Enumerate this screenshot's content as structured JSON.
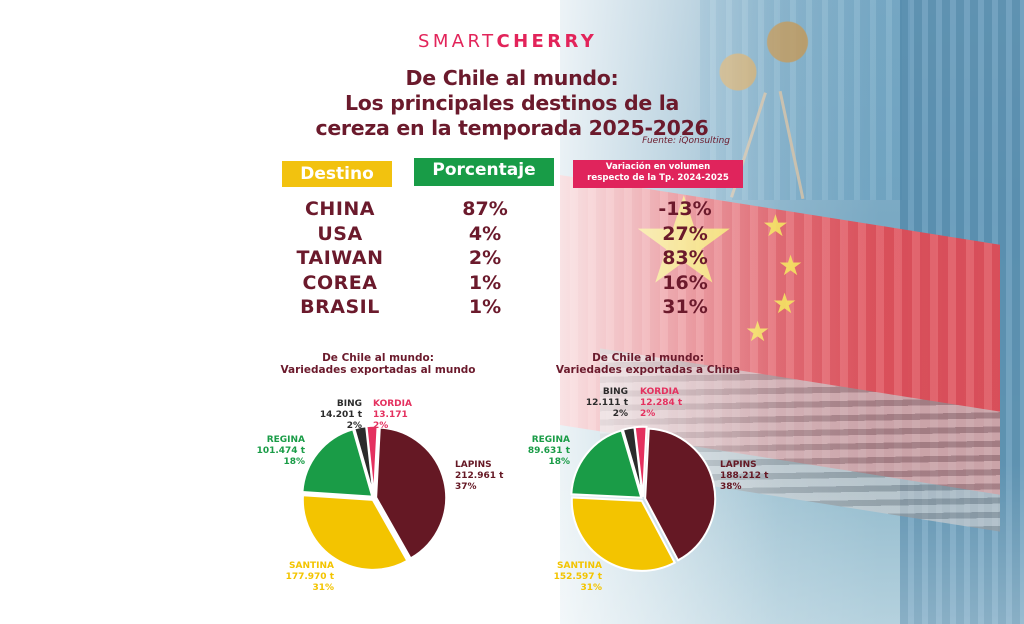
{
  "brand": {
    "light": "SMART",
    "bold": "CHERRY",
    "color": "#e2245a"
  },
  "title": {
    "line1": "De Chile al mundo:",
    "line2": "Los principales destinos de la",
    "line3": "cereza en la temporada 2025-2026"
  },
  "source": "Fuente: iQonsulting",
  "table": {
    "headers": {
      "destino": "Destino",
      "porcentaje": "Porcentaje",
      "variacion_line1": "Variación en volumen",
      "variacion_line2": "respecto de la Tp. 2024-2025"
    },
    "header_colors": {
      "destino": "#f2c20f",
      "porcentaje": "#189c47",
      "variacion": "#e0245c"
    },
    "rows": [
      {
        "destino": "CHINA",
        "porcentaje": "87%",
        "variacion": "-13%"
      },
      {
        "destino": "USA",
        "porcentaje": "4%",
        "variacion": "27%"
      },
      {
        "destino": "TAIWAN",
        "porcentaje": "2%",
        "variacion": "83%"
      },
      {
        "destino": "COREA",
        "porcentaje": "1%",
        "variacion": "16%"
      },
      {
        "destino": "BRASIL",
        "porcentaje": "1%",
        "variacion": "31%"
      }
    ]
  },
  "chart_data": [
    {
      "type": "pie",
      "title": "De Chile al mundo:",
      "subtitle": "Variedades exportadas al mundo",
      "units": "t",
      "slices": [
        {
          "label": "LAPINS",
          "volume": "212.961 t",
          "value": 212961,
          "percent": "37%",
          "color": "#651824"
        },
        {
          "label": "SANTINA",
          "volume": "177.970 t",
          "value": 177970,
          "percent": "31%",
          "color": "#f3c400"
        },
        {
          "label": "REGINA",
          "volume": "101.474 t",
          "value": 101474,
          "percent": "18%",
          "color": "#1a9c47"
        },
        {
          "label": "BING",
          "volume": "14.201 t",
          "value": 14201,
          "percent": "2%",
          "color": "#2b2b2b"
        },
        {
          "label": "KORDIA",
          "volume": "13.171",
          "value": 13171,
          "percent": "2%",
          "color": "#e4315f"
        }
      ]
    },
    {
      "type": "pie",
      "title": "De Chile al mundo:",
      "subtitle": "Variedades exportadas a China",
      "units": "t",
      "slices": [
        {
          "label": "LAPINS",
          "volume": "188.212 t",
          "value": 188212,
          "percent": "38%",
          "color": "#651824"
        },
        {
          "label": "SANTINA",
          "volume": "152.597 t",
          "value": 152597,
          "percent": "31%",
          "color": "#f3c400"
        },
        {
          "label": "REGINA",
          "volume": "89.631 t",
          "value": 89631,
          "percent": "18%",
          "color": "#1a9c47"
        },
        {
          "label": "BING",
          "volume": "12.111 t",
          "value": 12111,
          "percent": "2%",
          "color": "#2b2b2b"
        },
        {
          "label": "KORDIA",
          "volume": "12.284 t",
          "value": 12284,
          "percent": "2%",
          "color": "#e4315f"
        }
      ]
    }
  ]
}
